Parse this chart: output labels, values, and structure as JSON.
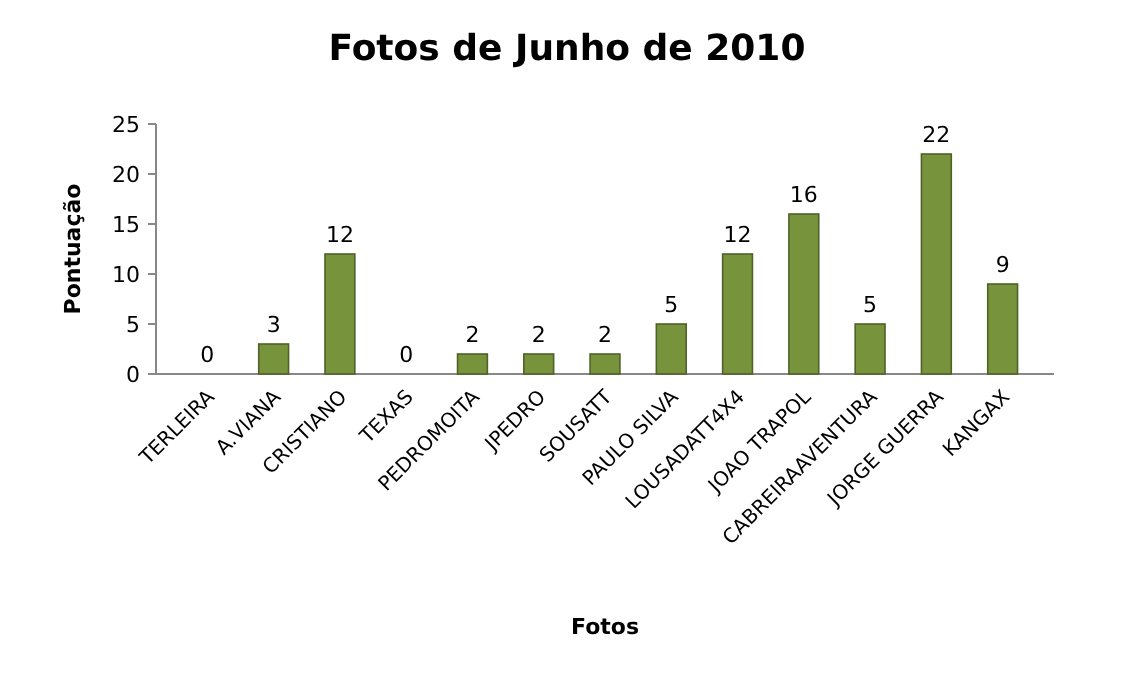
{
  "chart_data": {
    "type": "bar",
    "title": "Fotos de Junho de 2010",
    "xlabel": "Fotos",
    "ylabel": "Pontuação",
    "categories": [
      "TERLEIRA",
      "A.VIANA",
      "CRISTIANO",
      "TEXAS",
      "PEDROMOITA",
      "JPEDRO",
      "SOUSATT",
      "PAULO SILVA",
      "LOUSADATT4X4",
      "JOAO TRAPOL",
      "CABREIRAAVENTURA",
      "JORGE GUERRA",
      "KANGAX"
    ],
    "values": [
      0,
      3,
      12,
      0,
      2,
      2,
      2,
      5,
      12,
      16,
      5,
      22,
      9
    ],
    "color": "#77933c",
    "ylim": [
      0,
      25
    ],
    "yticks": [
      0,
      5,
      10,
      15,
      20,
      25
    ],
    "data_labels": true
  }
}
